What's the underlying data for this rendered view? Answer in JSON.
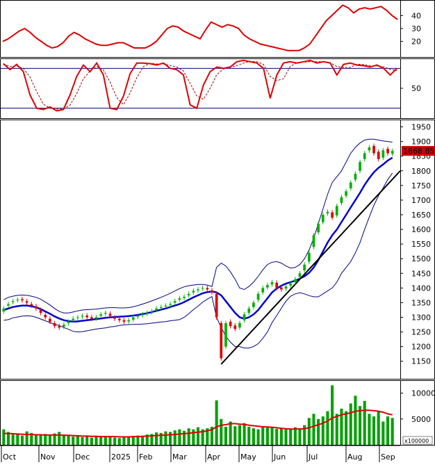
{
  "chart_data": {
    "type": "candlestick",
    "instrument_price_label": "1868.850",
    "x_axis": {
      "tick_labels": [
        "Oct",
        "Nov",
        "Dec",
        "2025",
        "Feb",
        "Mar",
        "Apr",
        "May",
        "Jun",
        "Jul",
        "Aug",
        "Sep"
      ]
    },
    "panes": {
      "adx": {
        "type": "line",
        "ylim": [
          8,
          52
        ],
        "ticks": [
          20,
          30,
          40
        ],
        "color": "#dd0000",
        "values": [
          20,
          22,
          25,
          28,
          30,
          27,
          23,
          20,
          17,
          15,
          16,
          19,
          24,
          27,
          25,
          22,
          20,
          18,
          17,
          17,
          18,
          19,
          19,
          17,
          15,
          15,
          15,
          17,
          20,
          25,
          30,
          32,
          31,
          28,
          26,
          24,
          22,
          29,
          35,
          33,
          31,
          33,
          32,
          30,
          25,
          22,
          20,
          18,
          17,
          16,
          15,
          14,
          13,
          13,
          13,
          15,
          18,
          24,
          30,
          36,
          40,
          44,
          48,
          46,
          42,
          45,
          46,
          45,
          46,
          47,
          44,
          40,
          37
        ]
      },
      "stochastic": {
        "type": "line",
        "ylim": [
          5,
          95
        ],
        "ticks": [
          50
        ],
        "overbought": 80,
        "oversold": 20,
        "k_color": "#dd0000",
        "d_color": "#990000",
        "k_values": [
          87,
          78,
          86,
          75,
          40,
          20,
          18,
          22,
          16,
          18,
          40,
          68,
          85,
          75,
          88,
          70,
          20,
          18,
          38,
          72,
          88,
          88,
          87,
          85,
          88,
          80,
          78,
          70,
          25,
          20,
          55,
          75,
          82,
          80,
          82,
          90,
          92,
          90,
          88,
          80,
          35,
          70,
          88,
          90,
          88,
          90,
          92,
          88,
          90,
          88,
          70,
          86,
          88,
          85,
          84,
          82,
          85,
          80,
          70,
          80
        ]
      },
      "price": {
        "ylim": [
          1090,
          1975
        ],
        "ticks": [
          1150,
          1200,
          1250,
          1300,
          1350,
          1400,
          1450,
          1500,
          1550,
          1600,
          1650,
          1700,
          1750,
          1800,
          1850,
          1900,
          1950
        ],
        "close": [
          1330,
          1345,
          1355,
          1360,
          1358,
          1350,
          1340,
          1330,
          1315,
          1300,
          1285,
          1270,
          1265,
          1275,
          1285,
          1295,
          1300,
          1305,
          1300,
          1295,
          1300,
          1310,
          1315,
          1305,
          1295,
          1290,
          1285,
          1290,
          1300,
          1305,
          1310,
          1315,
          1320,
          1330,
          1335,
          1340,
          1345,
          1355,
          1365,
          1370,
          1380,
          1390,
          1395,
          1400,
          1395,
          1385,
          1300,
          1160,
          1280,
          1270,
          1260,
          1280,
          1310,
          1330,
          1350,
          1380,
          1400,
          1410,
          1420,
          1400,
          1395,
          1405,
          1415,
          1430,
          1450,
          1480,
          1520,
          1580,
          1620,
          1650,
          1660,
          1640,
          1680,
          1710,
          1730,
          1760,
          1790,
          1830,
          1860,
          1880,
          1860,
          1840,
          1870,
          1860,
          1868
        ],
        "open": [
          1320,
          1340,
          1352,
          1358,
          1362,
          1355,
          1345,
          1338,
          1325,
          1308,
          1295,
          1280,
          1270,
          1268,
          1280,
          1290,
          1298,
          1302,
          1306,
          1300,
          1296,
          1305,
          1312,
          1312,
          1300,
          1295,
          1290,
          1286,
          1292,
          1302,
          1307,
          1312,
          1318,
          1325,
          1332,
          1337,
          1342,
          1350,
          1360,
          1366,
          1375,
          1385,
          1392,
          1398,
          1400,
          1392,
          1380,
          1280,
          1200,
          1285,
          1272,
          1265,
          1290,
          1315,
          1335,
          1360,
          1385,
          1402,
          1412,
          1418,
          1402,
          1398,
          1408,
          1420,
          1438,
          1460,
          1490,
          1540,
          1590,
          1625,
          1655,
          1658,
          1648,
          1690,
          1715,
          1740,
          1770,
          1800,
          1840,
          1870,
          1885,
          1865,
          1845,
          1875,
          1858
        ],
        "bb_mid": [
          1325,
          1330,
          1335,
          1338,
          1340,
          1340,
          1338,
          1334,
          1328,
          1320,
          1312,
          1303,
          1296,
          1290,
          1287,
          1285,
          1286,
          1288,
          1290,
          1292,
          1294,
          1296,
          1298,
          1300,
          1301,
          1302,
          1303,
          1304,
          1306,
          1308,
          1311,
          1314,
          1318,
          1322,
          1326,
          1330,
          1335,
          1340,
          1345,
          1352,
          1360,
          1368,
          1375,
          1382,
          1386,
          1388,
          1385,
          1375,
          1355,
          1335,
          1315,
          1300,
          1295,
          1300,
          1310,
          1325,
          1345,
          1365,
          1385,
          1398,
          1408,
          1415,
          1420,
          1425,
          1432,
          1440,
          1452,
          1470,
          1495,
          1525,
          1555,
          1580,
          1600,
          1625,
          1650,
          1675,
          1700,
          1725,
          1752,
          1775,
          1795,
          1810,
          1822,
          1835,
          1845
        ],
        "bb_upper": [
          1360,
          1368,
          1372,
          1375,
          1376,
          1375,
          1372,
          1368,
          1362,
          1352,
          1342,
          1330,
          1320,
          1315,
          1315,
          1318,
          1322,
          1325,
          1326,
          1327,
          1328,
          1330,
          1332,
          1333,
          1333,
          1332,
          1332,
          1333,
          1336,
          1340,
          1345,
          1350,
          1356,
          1362,
          1368,
          1375,
          1382,
          1390,
          1398,
          1404,
          1408,
          1410,
          1412,
          1412,
          1410,
          1405,
          1470,
          1485,
          1475,
          1455,
          1430,
          1400,
          1395,
          1405,
          1420,
          1440,
          1462,
          1480,
          1488,
          1490,
          1485,
          1475,
          1468,
          1470,
          1480,
          1500,
          1530,
          1570,
          1620,
          1670,
          1720,
          1760,
          1780,
          1800,
          1830,
          1860,
          1880,
          1895,
          1905,
          1908,
          1908,
          1905,
          1902,
          1900,
          1898
        ],
        "bb_lower": [
          1290,
          1292,
          1298,
          1301,
          1304,
          1305,
          1304,
          1300,
          1294,
          1288,
          1282,
          1276,
          1272,
          1265,
          1259,
          1252,
          1250,
          1251,
          1254,
          1257,
          1260,
          1262,
          1264,
          1267,
          1269,
          1272,
          1274,
          1275,
          1276,
          1276,
          1277,
          1278,
          1280,
          1282,
          1284,
          1285,
          1288,
          1290,
          1292,
          1300,
          1312,
          1326,
          1338,
          1352,
          1362,
          1371,
          1300,
          1265,
          1235,
          1215,
          1200,
          1200,
          1195,
          1195,
          1200,
          1210,
          1228,
          1250,
          1282,
          1306,
          1331,
          1355,
          1372,
          1380,
          1384,
          1380,
          1374,
          1370,
          1370,
          1380,
          1390,
          1400,
          1420,
          1450,
          1470,
          1490,
          1520,
          1555,
          1600,
          1642,
          1682,
          1715,
          1742,
          1770,
          1792
        ],
        "trendline": {
          "start": 1140,
          "end": 1800
        }
      },
      "volume": {
        "ylim": [
          0,
          12500
        ],
        "ticks": [
          5000,
          10000
        ],
        "multiplier_label": "x100000",
        "bar_color": "#00a000",
        "ma_color": "#dd0000",
        "values": [
          3000,
          2500,
          2000,
          2200,
          1800,
          2600,
          2300,
          2000,
          1900,
          2100,
          1800,
          2200,
          2500,
          2000,
          1800,
          1600,
          1700,
          1500,
          1600,
          1400,
          1700,
          1600,
          1500,
          1500,
          1400,
          1300,
          1600,
          1500,
          1700,
          1800,
          1700,
          2000,
          2100,
          2400,
          2300,
          2600,
          2500,
          2800,
          3000,
          2700,
          3200,
          3000,
          3400,
          3000,
          3200,
          3500,
          8600,
          5000,
          3500,
          4500,
          3600,
          3800,
          4200,
          3500,
          3200,
          3000,
          3600,
          3400,
          3500,
          3100,
          3200,
          3000,
          3000,
          3400,
          3200,
          3800,
          5200,
          6000,
          5000,
          5500,
          6500,
          11500,
          6000,
          7000,
          6500,
          8000,
          9500,
          7500,
          8500,
          6000,
          5500,
          6500,
          4500,
          5500,
          5200
        ],
        "ma": [
          2200,
          2200,
          2150,
          2100,
          2050,
          2000,
          2000,
          1950,
          1950,
          1900,
          1900,
          1900,
          1900,
          1850,
          1850,
          1800,
          1750,
          1700,
          1700,
          1650,
          1650,
          1600,
          1600,
          1600,
          1600,
          1550,
          1550,
          1550,
          1600,
          1600,
          1650,
          1700,
          1750,
          1800,
          1850,
          1900,
          1950,
          2000,
          2100,
          2150,
          2250,
          2350,
          2450,
          2550,
          2700,
          2950,
          3500,
          3800,
          3900,
          4100,
          4100,
          4000,
          3950,
          3800,
          3700,
          3600,
          3500,
          3450,
          3400,
          3300,
          3200,
          3100,
          3050,
          3050,
          3050,
          3100,
          3300,
          3600,
          3900,
          4200,
          4600,
          5200,
          5500,
          5800,
          6000,
          6200,
          6500,
          6600,
          6700,
          6700,
          6600,
          6500,
          6300,
          6000,
          5800
        ]
      }
    }
  }
}
